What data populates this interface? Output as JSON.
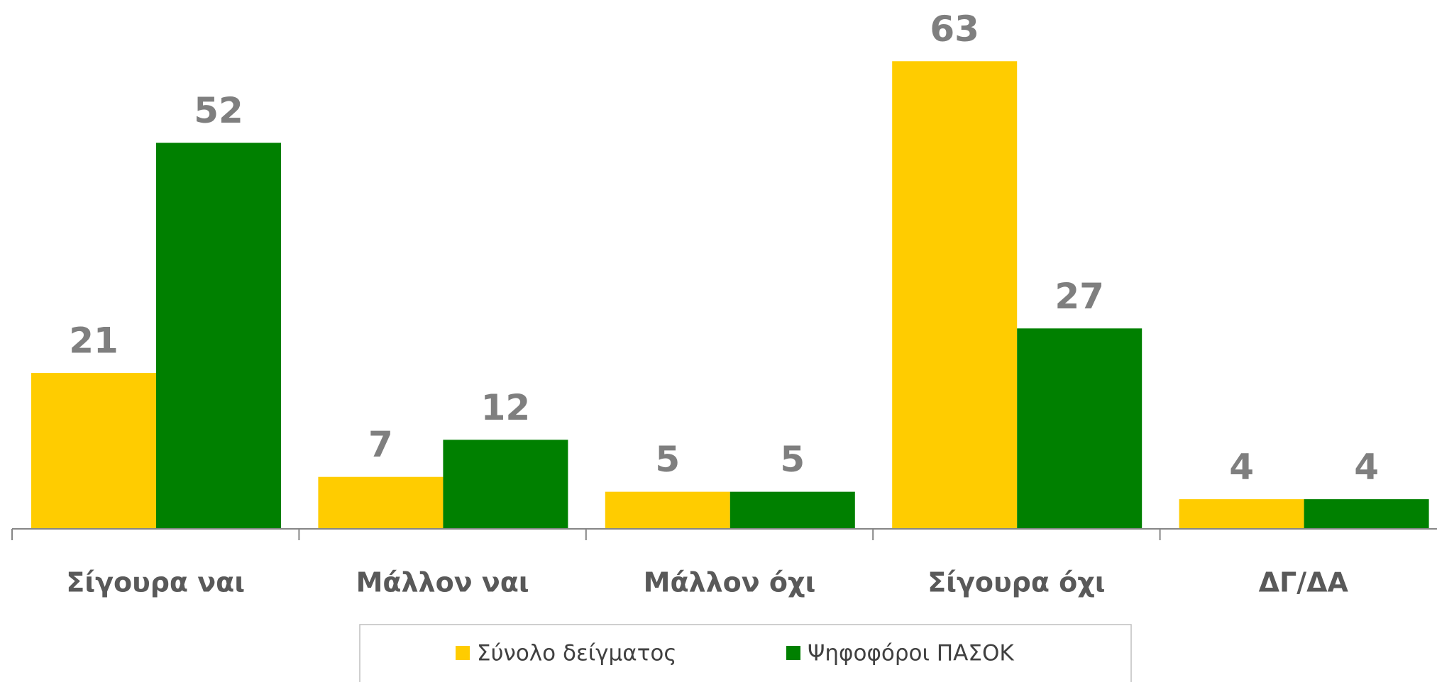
{
  "chart_data": {
    "type": "bar",
    "categories": [
      "Σίγουρα ναι",
      "Μάλλον ναι",
      "Μάλλον όχι",
      "Σίγουρα όχι",
      "ΔΓ/ΔΑ"
    ],
    "series": [
      {
        "name": "Σύνολο δείγματος",
        "color": "#ffcc00",
        "values": [
          21,
          7,
          5,
          63,
          4
        ]
      },
      {
        "name": "Ψηφοφόροι ΠΑΣΟΚ",
        "color": "#008000",
        "values": [
          52,
          12,
          5,
          27,
          4
        ]
      }
    ],
    "ylim": [
      0,
      70
    ],
    "legend": "bottom"
  }
}
